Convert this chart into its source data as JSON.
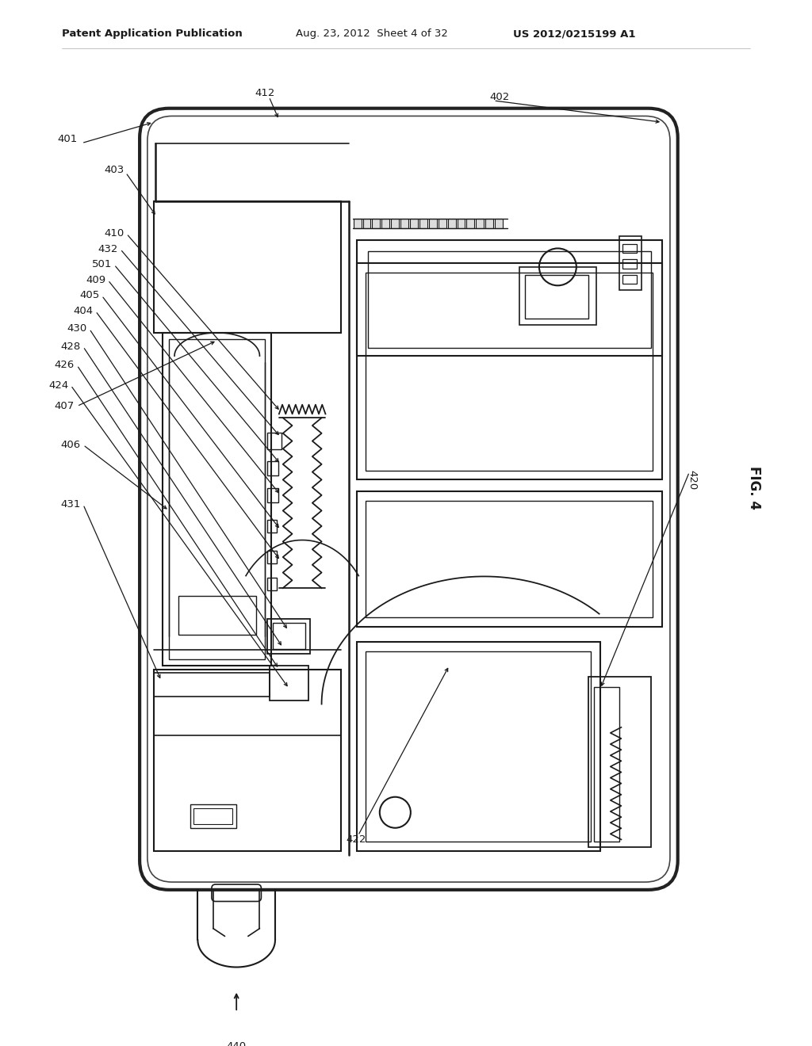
{
  "bg_color": "#ffffff",
  "header_left": "Patent Application Publication",
  "header_mid": "Aug. 23, 2012  Sheet 4 of 32",
  "header_right": "US 2012/0215199 A1",
  "fig_label": "FIG. 4",
  "line_color": "#1a1a1a",
  "text_color": "#1a1a1a",
  "label_fontsize": 9.5,
  "header_fontsize": 9.5
}
